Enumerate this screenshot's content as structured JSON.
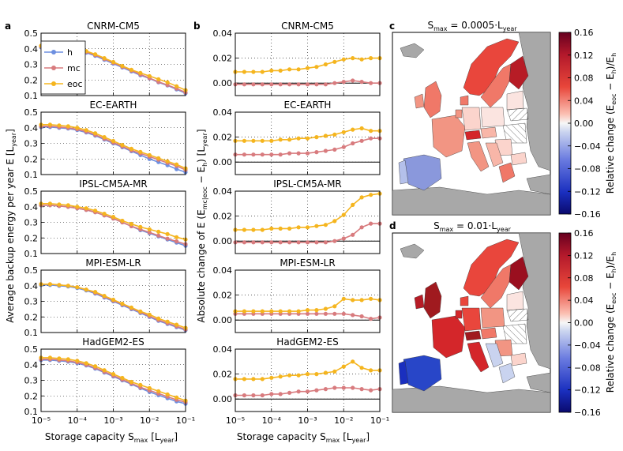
{
  "figure": {
    "panel_labels": [
      "a",
      "b",
      "c",
      "d"
    ]
  },
  "colors": {
    "h": "#6d8fe0",
    "mc": "#d87b7e",
    "eoc": "#f5b51e",
    "land_nodata": "#a8a8a8",
    "sea": "#ffffff"
  },
  "legend": [
    "h",
    "mc",
    "eoc"
  ],
  "chart_data": [
    {
      "type": "line",
      "panel": "a",
      "xlabel": "Storage capacity Sₘₐₓ [Lᵧₑₐᵣ]",
      "xlabel_main": "Storage capacity S",
      "xlabel_sub": "max",
      "xlabel_tail": "[L",
      "xlabel_sub2": "year",
      "xlabel_close": "]",
      "ylabel_main": "Average backup energy per year E [L",
      "ylabel_sub": "year",
      "ylabel_close": "]",
      "xscale": "log",
      "xlim": [
        1e-05,
        0.1
      ],
      "xticks": [
        "10⁻⁵",
        "10⁻⁴",
        "10⁻³",
        "10⁻²",
        "10⁻¹"
      ],
      "ylim": [
        0.1,
        0.5
      ],
      "yticks": [
        "0.1",
        "0.2",
        "0.3",
        "0.4",
        "0.5"
      ],
      "grid": true,
      "legend_position": "top-left of first subplot",
      "subplots": [
        {
          "title": "CNRM-CM5",
          "x_log10": [
            -5,
            -4.75,
            -4.5,
            -4.25,
            -4,
            -3.75,
            -3.5,
            -3.25,
            -3,
            -2.75,
            -2.5,
            -2.25,
            -2,
            -1.75,
            -1.5,
            -1.25,
            -1
          ],
          "series": [
            {
              "name": "h",
              "values": [
                0.41,
                0.41,
                0.405,
                0.4,
                0.39,
                0.375,
                0.355,
                0.33,
                0.305,
                0.28,
                0.255,
                0.23,
                0.21,
                0.185,
                0.165,
                0.14,
                0.115
              ]
            },
            {
              "name": "mc",
              "values": [
                0.415,
                0.415,
                0.41,
                0.405,
                0.395,
                0.38,
                0.36,
                0.335,
                0.31,
                0.285,
                0.26,
                0.235,
                0.212,
                0.188,
                0.168,
                0.145,
                0.12
              ]
            },
            {
              "name": "eoc",
              "values": [
                0.42,
                0.42,
                0.415,
                0.41,
                0.4,
                0.385,
                0.365,
                0.34,
                0.315,
                0.29,
                0.265,
                0.245,
                0.225,
                0.205,
                0.185,
                0.16,
                0.135
              ]
            }
          ]
        },
        {
          "title": "EC-EARTH",
          "x_log10": [
            -5,
            -4.75,
            -4.5,
            -4.25,
            -4,
            -3.75,
            -3.5,
            -3.25,
            -3,
            -2.75,
            -2.5,
            -2.25,
            -2,
            -1.75,
            -1.5,
            -1.25,
            -1
          ],
          "series": [
            {
              "name": "h",
              "values": [
                0.405,
                0.405,
                0.4,
                0.395,
                0.385,
                0.37,
                0.35,
                0.325,
                0.3,
                0.275,
                0.25,
                0.225,
                0.2,
                0.18,
                0.16,
                0.135,
                0.115
              ]
            },
            {
              "name": "mc",
              "values": [
                0.41,
                0.41,
                0.405,
                0.4,
                0.39,
                0.375,
                0.355,
                0.33,
                0.305,
                0.28,
                0.255,
                0.235,
                0.215,
                0.195,
                0.175,
                0.155,
                0.13
              ]
            },
            {
              "name": "eoc",
              "values": [
                0.42,
                0.42,
                0.415,
                0.41,
                0.4,
                0.385,
                0.365,
                0.34,
                0.315,
                0.29,
                0.265,
                0.245,
                0.225,
                0.205,
                0.185,
                0.165,
                0.14
              ]
            }
          ]
        },
        {
          "title": "IPSL-CM5A-MR",
          "x_log10": [
            -5,
            -4.75,
            -4.5,
            -4.25,
            -4,
            -3.75,
            -3.5,
            -3.25,
            -3,
            -2.75,
            -2.5,
            -2.25,
            -2,
            -1.75,
            -1.5,
            -1.25,
            -1
          ],
          "series": [
            {
              "name": "h",
              "values": [
                0.41,
                0.41,
                0.405,
                0.4,
                0.39,
                0.38,
                0.365,
                0.345,
                0.325,
                0.3,
                0.275,
                0.25,
                0.23,
                0.21,
                0.19,
                0.17,
                0.15
              ]
            },
            {
              "name": "mc",
              "values": [
                0.41,
                0.41,
                0.405,
                0.4,
                0.39,
                0.38,
                0.365,
                0.345,
                0.325,
                0.3,
                0.275,
                0.255,
                0.235,
                0.215,
                0.195,
                0.178,
                0.16
              ]
            },
            {
              "name": "eoc",
              "values": [
                0.42,
                0.42,
                0.415,
                0.41,
                0.4,
                0.39,
                0.375,
                0.355,
                0.335,
                0.31,
                0.29,
                0.27,
                0.255,
                0.24,
                0.225,
                0.205,
                0.19
              ]
            }
          ]
        },
        {
          "title": "MPI-ESM-LR",
          "x_log10": [
            -5,
            -4.75,
            -4.5,
            -4.25,
            -4,
            -3.75,
            -3.5,
            -3.25,
            -3,
            -2.75,
            -2.5,
            -2.25,
            -2,
            -1.75,
            -1.5,
            -1.25,
            -1
          ],
          "series": [
            {
              "name": "h",
              "values": [
                0.405,
                0.405,
                0.4,
                0.395,
                0.385,
                0.37,
                0.35,
                0.325,
                0.3,
                0.275,
                0.25,
                0.225,
                0.2,
                0.175,
                0.155,
                0.135,
                0.115
              ]
            },
            {
              "name": "mc",
              "values": [
                0.41,
                0.41,
                0.405,
                0.4,
                0.39,
                0.375,
                0.355,
                0.33,
                0.305,
                0.28,
                0.255,
                0.23,
                0.205,
                0.18,
                0.16,
                0.14,
                0.12
              ]
            },
            {
              "name": "eoc",
              "values": [
                0.41,
                0.41,
                0.405,
                0.4,
                0.39,
                0.375,
                0.36,
                0.335,
                0.31,
                0.285,
                0.26,
                0.235,
                0.215,
                0.19,
                0.17,
                0.15,
                0.13
              ]
            }
          ]
        },
        {
          "title": "HadGEM2-ES",
          "x_log10": [
            -5,
            -4.75,
            -4.5,
            -4.25,
            -4,
            -3.75,
            -3.5,
            -3.25,
            -3,
            -2.75,
            -2.5,
            -2.25,
            -2,
            -1.75,
            -1.5,
            -1.25,
            -1
          ],
          "series": [
            {
              "name": "h",
              "values": [
                0.43,
                0.43,
                0.425,
                0.42,
                0.41,
                0.395,
                0.375,
                0.35,
                0.325,
                0.3,
                0.275,
                0.25,
                0.225,
                0.205,
                0.185,
                0.165,
                0.15
              ]
            },
            {
              "name": "mc",
              "values": [
                0.435,
                0.435,
                0.43,
                0.425,
                0.415,
                0.4,
                0.38,
                0.355,
                0.33,
                0.305,
                0.28,
                0.255,
                0.235,
                0.215,
                0.195,
                0.175,
                0.16
              ]
            },
            {
              "name": "eoc",
              "values": [
                0.445,
                0.445,
                0.44,
                0.435,
                0.425,
                0.41,
                0.39,
                0.365,
                0.34,
                0.315,
                0.29,
                0.27,
                0.25,
                0.23,
                0.21,
                0.19,
                0.17
              ]
            }
          ]
        }
      ]
    },
    {
      "type": "line",
      "panel": "b",
      "xlabel_main": "Storage capacity S",
      "xlabel_sub": "max",
      "xlabel_tail": "[L",
      "xlabel_sub2": "year",
      "xlabel_close": "]",
      "ylabel_main": "Absolute change of E (E",
      "ylabel_sub": "mc|eoc",
      "ylabel_mid": " − E",
      "ylabel_sub2": "h",
      "ylabel_mid2": ") [L",
      "ylabel_sub3": "year",
      "ylabel_close": "]",
      "xscale": "log",
      "xlim": [
        1e-05,
        0.1
      ],
      "xticks": [
        "10⁻⁵",
        "10⁻⁴",
        "10⁻³",
        "10⁻²",
        "10⁻¹"
      ],
      "ylim": [
        -0.01,
        0.04
      ],
      "yticks": [
        "0.00",
        "0.02",
        "0.04"
      ],
      "grid": true,
      "subplots": [
        {
          "title": "CNRM-CM5",
          "x_log10": [
            -5,
            -4.75,
            -4.5,
            -4.25,
            -4,
            -3.75,
            -3.5,
            -3.25,
            -3,
            -2.75,
            -2.5,
            -2.25,
            -2,
            -1.75,
            -1.5,
            -1.25,
            -1
          ],
          "series": [
            {
              "name": "mc",
              "values": [
                -0.001,
                -0.001,
                -0.001,
                -0.001,
                -0.001,
                -0.001,
                -0.001,
                -0.001,
                -0.001,
                -0.001,
                -0.001,
                0.0,
                0.001,
                0.002,
                0.001,
                0.0,
                0.0
              ]
            },
            {
              "name": "eoc",
              "values": [
                0.009,
                0.009,
                0.009,
                0.009,
                0.01,
                0.01,
                0.011,
                0.011,
                0.012,
                0.013,
                0.015,
                0.017,
                0.019,
                0.02,
                0.019,
                0.02,
                0.02
              ]
            }
          ]
        },
        {
          "title": "EC-EARTH",
          "x_log10": [
            -5,
            -4.75,
            -4.5,
            -4.25,
            -4,
            -3.75,
            -3.5,
            -3.25,
            -3,
            -2.75,
            -2.5,
            -2.25,
            -2,
            -1.75,
            -1.5,
            -1.25,
            -1
          ],
          "series": [
            {
              "name": "mc",
              "values": [
                0.006,
                0.006,
                0.006,
                0.006,
                0.006,
                0.006,
                0.007,
                0.007,
                0.007,
                0.008,
                0.009,
                0.01,
                0.012,
                0.015,
                0.017,
                0.019,
                0.019
              ]
            },
            {
              "name": "eoc",
              "values": [
                0.017,
                0.017,
                0.017,
                0.017,
                0.017,
                0.018,
                0.018,
                0.019,
                0.019,
                0.02,
                0.021,
                0.022,
                0.024,
                0.026,
                0.027,
                0.025,
                0.025
              ]
            }
          ]
        },
        {
          "title": "IPSL-CM5A-MR",
          "x_log10": [
            -5,
            -4.75,
            -4.5,
            -4.25,
            -4,
            -3.75,
            -3.5,
            -3.25,
            -3,
            -2.75,
            -2.5,
            -2.25,
            -2,
            -1.75,
            -1.5,
            -1.25,
            -1
          ],
          "series": [
            {
              "name": "mc",
              "values": [
                -0.001,
                -0.001,
                -0.001,
                -0.001,
                -0.001,
                -0.001,
                -0.001,
                -0.001,
                -0.001,
                -0.001,
                -0.001,
                0.0,
                0.002,
                0.005,
                0.011,
                0.014,
                0.014
              ]
            },
            {
              "name": "eoc",
              "values": [
                0.009,
                0.009,
                0.009,
                0.009,
                0.01,
                0.01,
                0.01,
                0.011,
                0.011,
                0.012,
                0.013,
                0.016,
                0.021,
                0.029,
                0.035,
                0.037,
                0.038
              ]
            }
          ]
        },
        {
          "title": "MPI-ESM-LR",
          "x_log10": [
            -5,
            -4.75,
            -4.5,
            -4.25,
            -4,
            -3.75,
            -3.5,
            -3.25,
            -3,
            -2.75,
            -2.5,
            -2.25,
            -2,
            -1.75,
            -1.5,
            -1.25,
            -1
          ],
          "series": [
            {
              "name": "mc",
              "values": [
                0.005,
                0.005,
                0.005,
                0.005,
                0.005,
                0.005,
                0.005,
                0.005,
                0.005,
                0.005,
                0.005,
                0.005,
                0.005,
                0.004,
                0.003,
                0.001,
                0.002
              ]
            },
            {
              "name": "eoc",
              "values": [
                0.007,
                0.007,
                0.007,
                0.007,
                0.007,
                0.007,
                0.007,
                0.007,
                0.008,
                0.008,
                0.009,
                0.011,
                0.017,
                0.016,
                0.016,
                0.017,
                0.016
              ]
            }
          ]
        },
        {
          "title": "HadGEM2-ES",
          "x_log10": [
            -5,
            -4.75,
            -4.5,
            -4.25,
            -4,
            -3.75,
            -3.5,
            -3.25,
            -3,
            -2.75,
            -2.5,
            -2.25,
            -2,
            -1.75,
            -1.5,
            -1.25,
            -1
          ],
          "series": [
            {
              "name": "mc",
              "values": [
                0.003,
                0.003,
                0.003,
                0.003,
                0.004,
                0.004,
                0.005,
                0.006,
                0.006,
                0.007,
                0.008,
                0.009,
                0.009,
                0.009,
                0.008,
                0.007,
                0.008
              ]
            },
            {
              "name": "eoc",
              "values": [
                0.016,
                0.016,
                0.016,
                0.016,
                0.017,
                0.018,
                0.019,
                0.019,
                0.02,
                0.02,
                0.021,
                0.022,
                0.026,
                0.03,
                0.025,
                0.023,
                0.023
              ]
            }
          ]
        }
      ]
    },
    {
      "type": "heatmap",
      "panel": "c",
      "title_main": "S",
      "title_sub": "max",
      "title_tail": " = 0.0005·L",
      "title_sub2": "year",
      "colorbar_ticks": [
        "0.16",
        "0.12",
        "0.08",
        "0.04",
        "0.00",
        "−0.04",
        "−0.08",
        "−0.12",
        "−0.16"
      ],
      "colorbar_range": [
        -0.16,
        0.16
      ],
      "colorbar_label_main": "Relative change (E",
      "colorbar_label_sub": "eoc",
      "colorbar_label_mid": " − E",
      "colorbar_label_sub2": "h",
      "colorbar_label_tail": ")/E",
      "colorbar_label_sub3": "h"
    },
    {
      "type": "heatmap",
      "panel": "d",
      "title_main": "S",
      "title_sub": "max",
      "title_tail": " = 0.01·L",
      "title_sub2": "year",
      "colorbar_ticks": [
        "0.16",
        "0.12",
        "0.08",
        "0.04",
        "0.00",
        "−0.04",
        "−0.08",
        "−0.12",
        "−0.16"
      ],
      "colorbar_range": [
        -0.16,
        0.16
      ],
      "colorbar_label_main": "Relative change (E",
      "colorbar_label_sub": "eoc",
      "colorbar_label_mid": " − E",
      "colorbar_label_sub2": "h",
      "colorbar_label_tail": ")/E",
      "colorbar_label_sub3": "h"
    }
  ]
}
